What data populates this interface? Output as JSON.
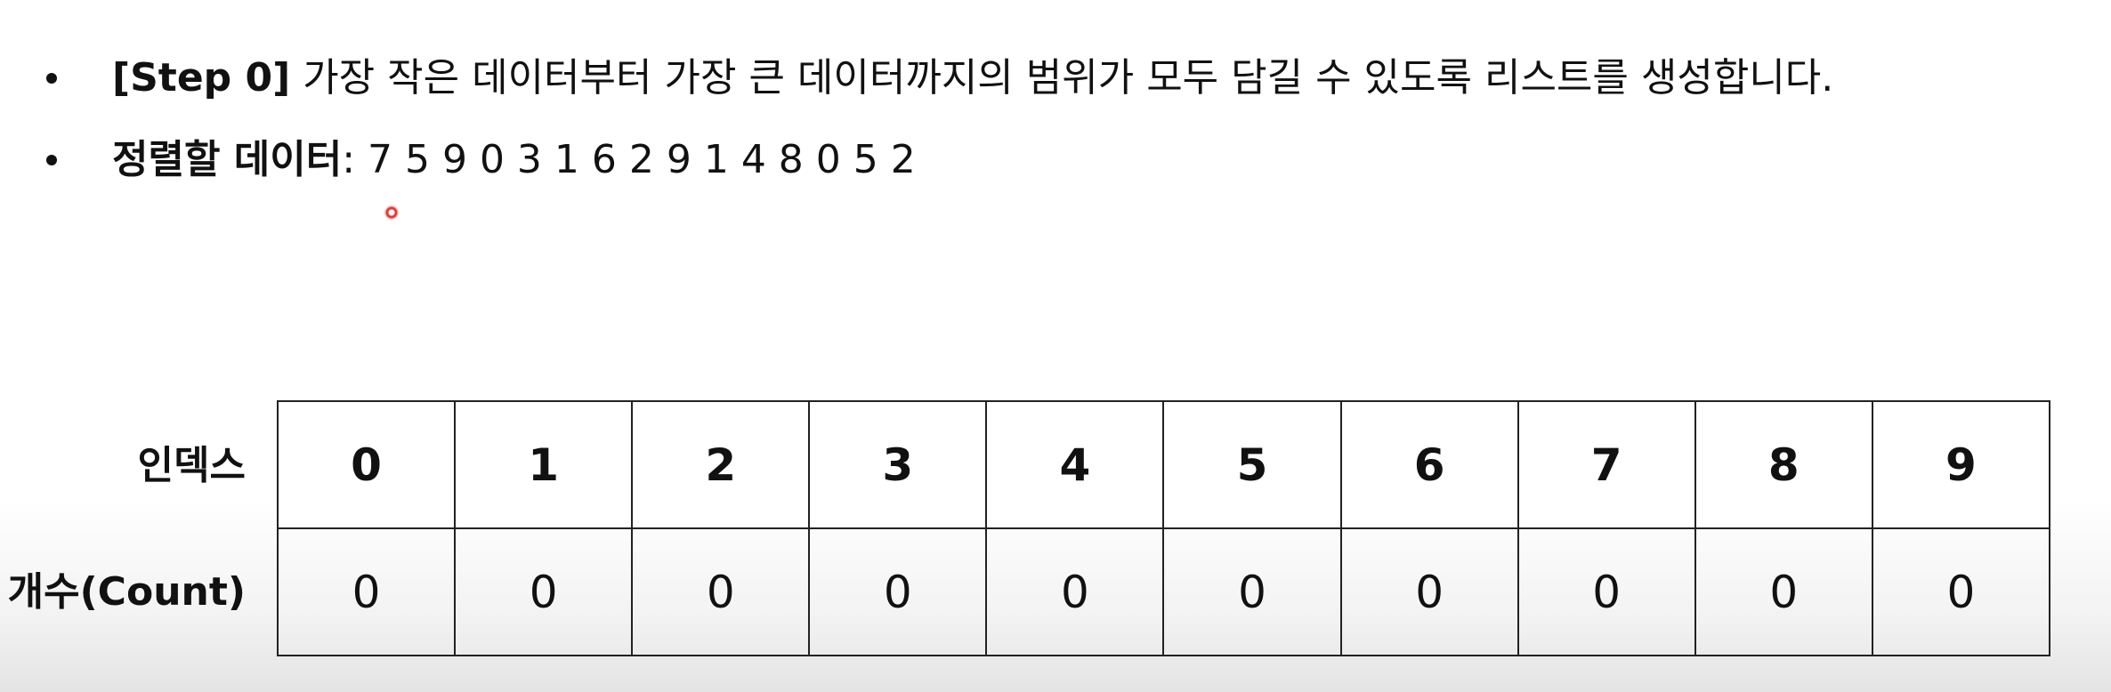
{
  "bullets": [
    {
      "strong": "[Step 0]",
      "text": " 가장 작은 데이터부터 가장 큰 데이터까지의 범위가 모두 담길 수 있도록 리스트를 생성합니다."
    },
    {
      "strong": "정렬할 데이터",
      "text": ": 7 5 9 0 3 1 6 2 9 1 4 8 0 5 2"
    }
  ],
  "table": {
    "index_label": "인덱스",
    "count_label": "개수(Count)",
    "indices": [
      "0",
      "1",
      "2",
      "3",
      "4",
      "5",
      "6",
      "7",
      "8",
      "9"
    ],
    "counts": [
      "0",
      "0",
      "0",
      "0",
      "0",
      "0",
      "0",
      "0",
      "0",
      "0"
    ]
  }
}
